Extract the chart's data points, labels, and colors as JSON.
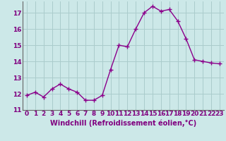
{
  "x": [
    0,
    1,
    2,
    3,
    4,
    5,
    6,
    7,
    8,
    9,
    10,
    11,
    12,
    13,
    14,
    15,
    16,
    17,
    18,
    19,
    20,
    21,
    22,
    23
  ],
  "y": [
    11.9,
    12.1,
    11.8,
    12.3,
    12.6,
    12.3,
    12.1,
    11.6,
    11.6,
    11.9,
    13.5,
    15.0,
    14.9,
    16.0,
    17.0,
    17.4,
    17.1,
    17.2,
    16.5,
    15.4,
    14.1,
    14.0,
    13.9,
    13.85
  ],
  "line_color": "#8b008b",
  "marker": "+",
  "marker_size": 4,
  "bg_color": "#cce8e8",
  "grid_color": "#aacccc",
  "xlabel": "Windchill (Refroidissement éolien,°C)",
  "xlabel_fontsize": 7,
  "xticks": [
    0,
    1,
    2,
    3,
    4,
    5,
    6,
    7,
    8,
    9,
    10,
    11,
    12,
    13,
    14,
    15,
    16,
    17,
    18,
    19,
    20,
    21,
    22,
    23
  ],
  "yticks": [
    11,
    12,
    13,
    14,
    15,
    16,
    17
  ],
  "ylim": [
    11,
    17.7
  ],
  "xlim": [
    -0.5,
    23.5
  ],
  "tick_fontsize": 6.5,
  "lw": 1.0
}
